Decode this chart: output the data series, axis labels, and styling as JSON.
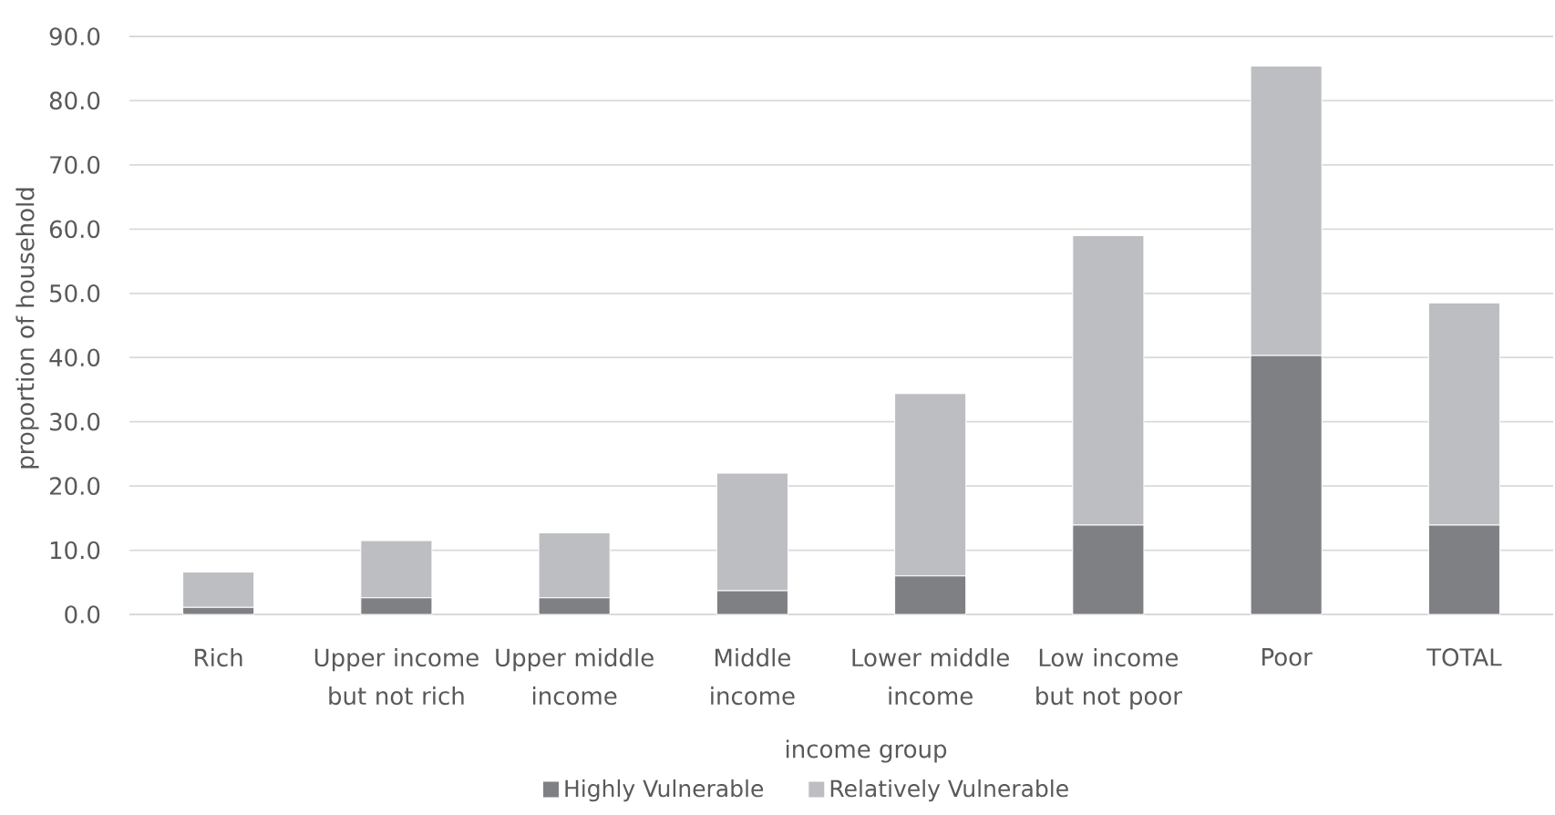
{
  "chart_data": {
    "type": "bar",
    "stacked": true,
    "xlabel": "income group",
    "ylabel": "proportion of household",
    "categories": [
      "Rich",
      "Upper income but not rich",
      "Upper middle income",
      "Middle income",
      "Lower middle income",
      "Low income but not poor",
      "Poor",
      "TOTAL"
    ],
    "series": [
      {
        "name": "Highly Vulnerable",
        "color": "#7f8084",
        "values": [
          1.1,
          2.6,
          2.6,
          3.7,
          6.0,
          13.9,
          40.3,
          13.9
        ]
      },
      {
        "name": "Relatively Vulnerable",
        "color": "#bdbec2",
        "values": [
          5.5,
          8.9,
          10.1,
          18.3,
          28.4,
          45.1,
          45.1,
          34.6
        ]
      }
    ],
    "ylim": [
      0,
      90
    ],
    "yticks": [
      {
        "value": 0,
        "label": "0.0"
      },
      {
        "value": 10,
        "label": "10.0"
      },
      {
        "value": 20,
        "label": "20.0"
      },
      {
        "value": 30,
        "label": "30.0"
      },
      {
        "value": 40,
        "label": "40.0"
      },
      {
        "value": 50,
        "label": "50.0"
      },
      {
        "value": 60,
        "label": "60.0"
      },
      {
        "value": 70,
        "label": "70.0"
      },
      {
        "value": 80,
        "label": "80.0"
      },
      {
        "value": 90,
        "label": "90.0"
      }
    ],
    "grid": "y",
    "legend": "bottom"
  }
}
